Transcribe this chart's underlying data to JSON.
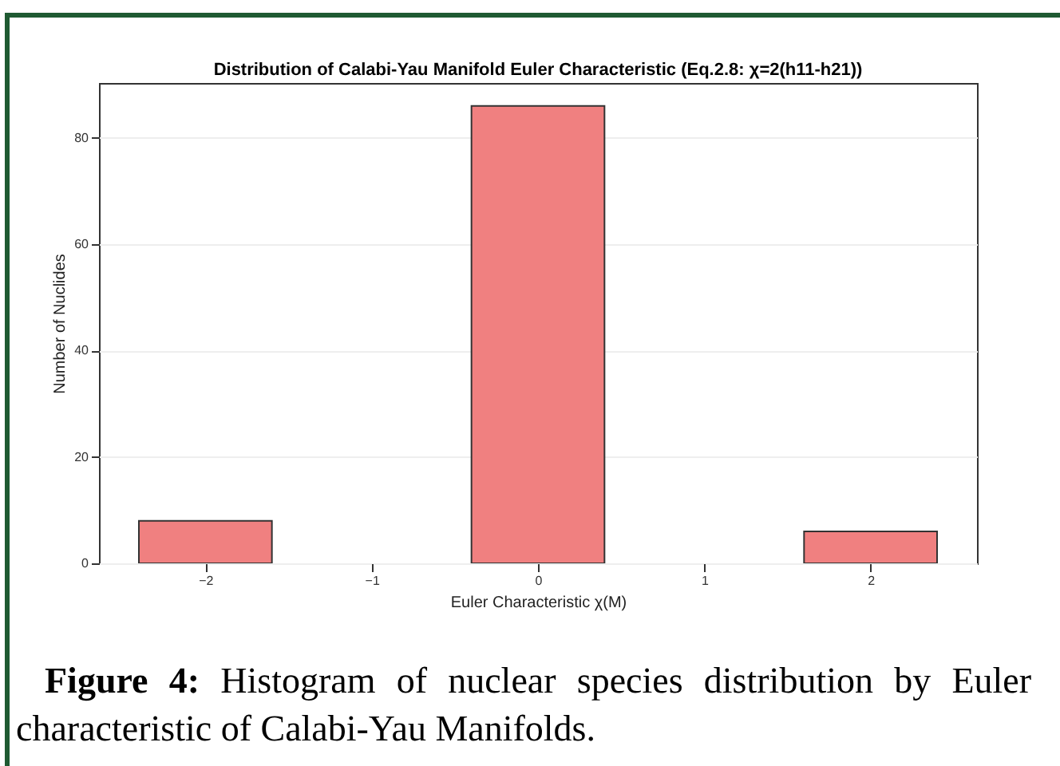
{
  "chart_data": {
    "type": "bar",
    "title": "Distribution of Calabi-Yau Manifold Euler Characteristic (Eq.2.8: χ=2(h11-h21))",
    "xlabel": "Euler Characteristic χ(M)",
    "ylabel": "Number of Nuclides",
    "x": [
      -2,
      0,
      2
    ],
    "series": [
      {
        "color": "#f08080",
        "values": [
          8,
          86,
          6
        ]
      }
    ],
    "xlim": [
      -2.64,
      2.64
    ],
    "xticks": [
      -2,
      -1,
      0,
      1,
      2
    ],
    "ylim": [
      0,
      90.3
    ],
    "yticks": [
      0,
      20,
      40,
      60,
      80
    ],
    "grid": "y",
    "annotations": [
      "Figure 4: Histogram of nuclear species distribution by Euler characteristic of Calabi-Yau Manifolds."
    ]
  }
}
